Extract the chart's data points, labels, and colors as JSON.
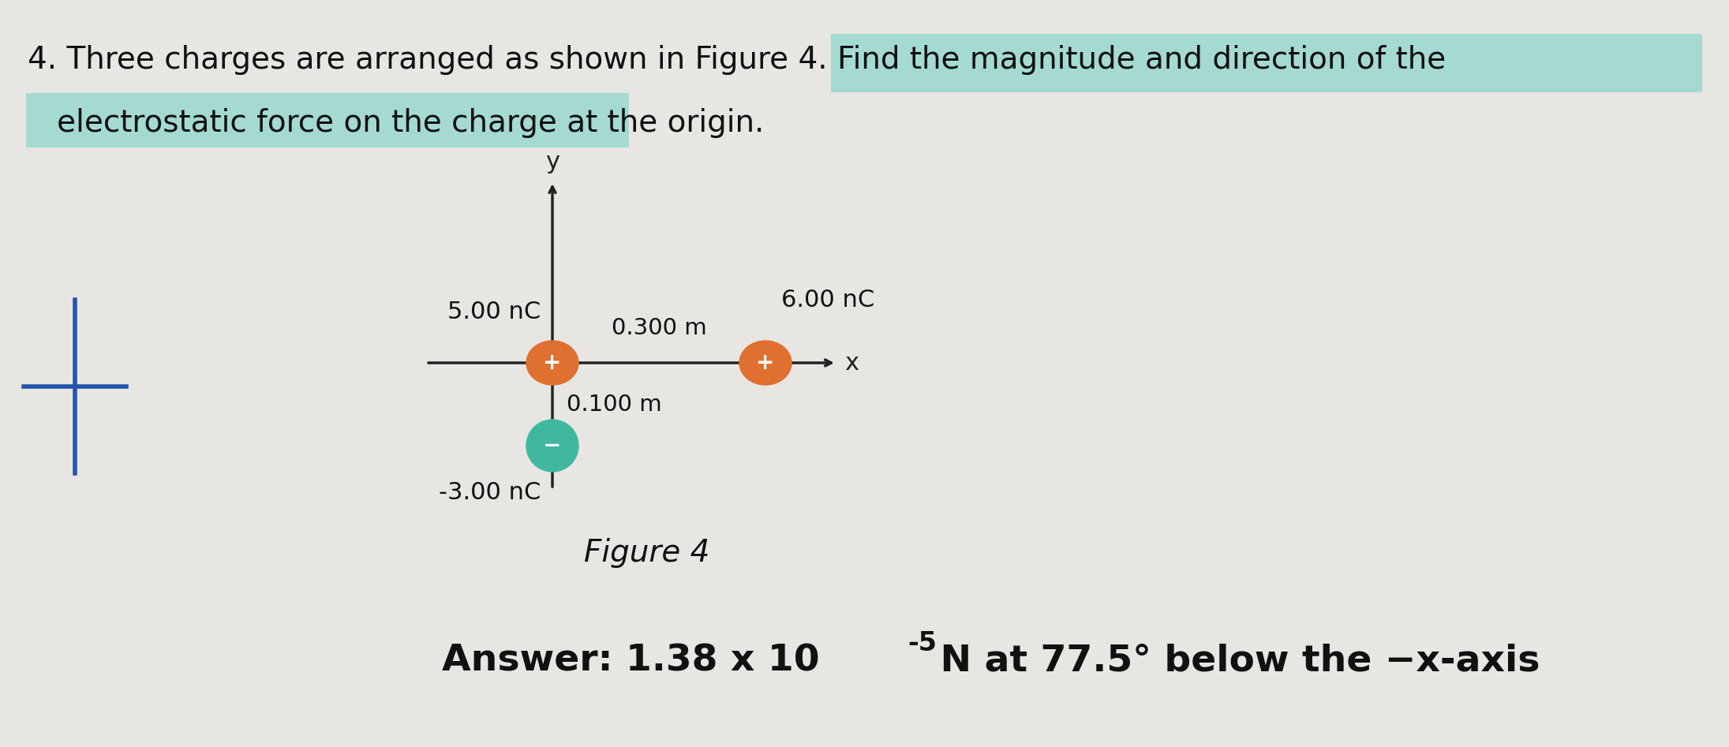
{
  "background_color": "#e8e6e2",
  "figure_label": "Figure 4",
  "charge_origin_label": "5.00 nC",
  "charge_origin_color": "#e07030",
  "charge_origin_sign": "+",
  "charge_right_label": "6.00 nC",
  "charge_right_color": "#e07030",
  "charge_right_sign": "+",
  "charge_below_label": "-3.00 nC",
  "charge_below_color": "#40b8a0",
  "charge_below_sign": "−",
  "dist_horizontal": "0.300 m",
  "dist_vertical": "0.100 m",
  "axis_color": "#222222",
  "highlight_teal": "#80d4c8",
  "cross_color": "#2255aa",
  "axis_x_label": "x",
  "axis_y_label": "y",
  "line1": "4. Three charges are arranged as shown in Figure 4. Find the magnitude and direction of the",
  "line2": "   electrostatic force on the charge at the origin.",
  "highlight1_words": "magnitude and direction of the",
  "highlight2_words": "electrostatic force on the charge at the origin.",
  "answer_line": "Answer: 1.38 x 10",
  "answer_exp": "-5",
  "answer_tail": " N at 77.5° below the −x-axis"
}
